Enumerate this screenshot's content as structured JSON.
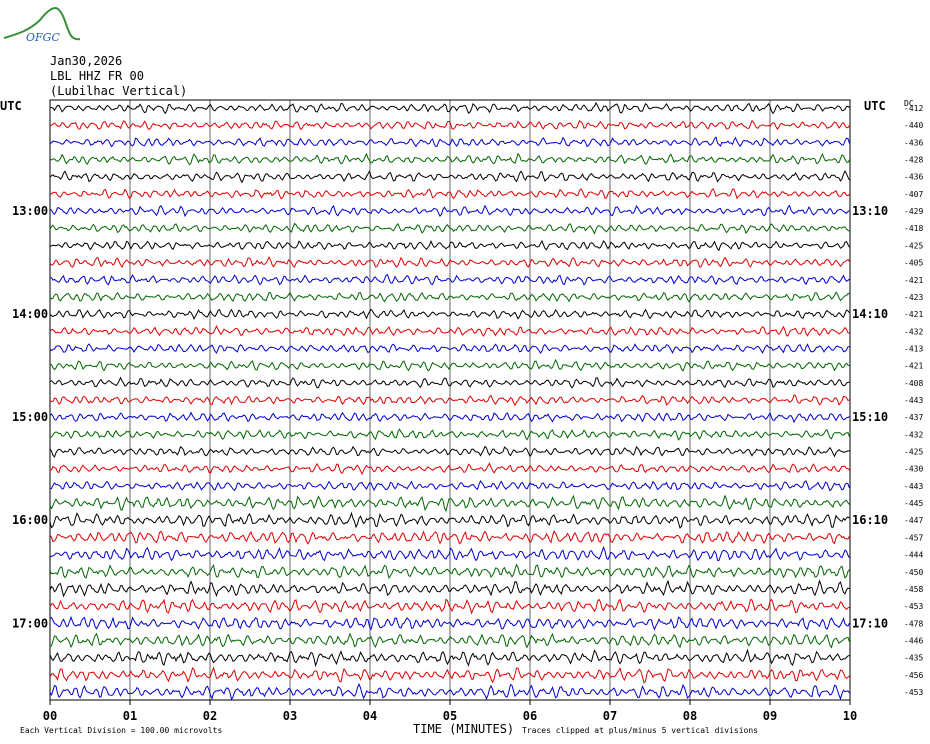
{
  "logo": {
    "text": "OFGC",
    "color": "#3a8f3a",
    "text_color": "#2a5db0"
  },
  "header": {
    "date": "Jan30,2026",
    "station": "LBL HHZ FR 00",
    "location": "(Lubilhac Vertical)"
  },
  "chart_data": {
    "type": "line",
    "title": "",
    "xlabel": "TIME (MINUTES)",
    "ylabel": "",
    "xlim": [
      0,
      10
    ],
    "x_ticks": [
      "00",
      "01",
      "02",
      "03",
      "04",
      "05",
      "06",
      "07",
      "08",
      "09",
      "10"
    ],
    "utc_label_left": "UTC",
    "utc_label_right": "UTC",
    "dc_label": "DC",
    "left_time_labels": [
      "13:00",
      "14:00",
      "15:00",
      "16:00",
      "17:00"
    ],
    "right_time_labels": [
      "13:10",
      "14:10",
      "15:10",
      "16:10",
      "17:10"
    ],
    "dc_offsets": [
      "-412",
      "-440",
      "-436",
      "-428",
      "-436",
      "-407",
      "-429",
      "-418",
      "-425",
      "-405",
      "-421",
      "-423",
      "-421",
      "-432",
      "-413",
      "-421",
      "-408",
      "-443",
      "-437",
      "-432",
      "-425",
      "-430",
      "-443",
      "-445",
      "-447",
      "-457",
      "-444",
      "-450",
      "-458",
      "-453",
      "-478",
      "-446",
      "-435",
      "-456",
      "-453"
    ],
    "trace_colors": [
      "#000000",
      "#e00000",
      "#0000d0",
      "#006600"
    ],
    "grid": true,
    "footer_left": "Each Vertical Division =  100.00 microvolts",
    "footer_right": "Traces clipped at plus/minus 5 vertical divisions"
  }
}
